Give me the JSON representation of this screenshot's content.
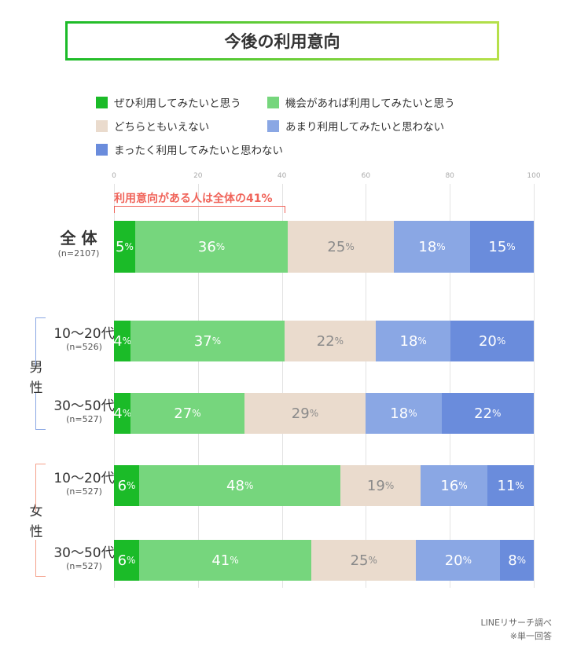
{
  "title": "今後の利用意向",
  "colors": {
    "s0": "#1bbb28",
    "s1": "#76d67d",
    "s2": "#eadbcd",
    "s3": "#8aa7e4",
    "s4": "#6a8cdc",
    "male_bracket": "#8aa7e4",
    "female_bracket": "#f5a18c",
    "annotation": "#f0645a"
  },
  "chart_data": {
    "type": "bar",
    "orientation": "horizontal-stacked-100",
    "xlim": [
      0,
      100
    ],
    "ticks": [
      "0",
      "20",
      "40",
      "60",
      "80",
      "100"
    ],
    "grid": true,
    "legend_placement": "top",
    "series": [
      {
        "name": "ぜひ利用してみたいと思う",
        "values": [
          5,
          4,
          4,
          6,
          6
        ]
      },
      {
        "name": "機会があれば利用してみたいと思う",
        "values": [
          36,
          37,
          27,
          48,
          41
        ]
      },
      {
        "name": "どちらともいえない",
        "values": [
          25,
          22,
          29,
          19,
          25
        ]
      },
      {
        "name": "あまり利用してみたいと思わない",
        "values": [
          18,
          18,
          18,
          16,
          20
        ]
      },
      {
        "name": "まったく利用してみたいと思わない",
        "values": [
          15,
          20,
          22,
          11,
          8
        ]
      }
    ],
    "unit": "%",
    "categories": [
      {
        "label": "全 体",
        "n": "(n=2107)"
      },
      {
        "label": "10〜20代",
        "n": "(n=526)"
      },
      {
        "label": "30〜50代",
        "n": "(n=527)"
      },
      {
        "label": "10〜20代",
        "n": "(n=527)"
      },
      {
        "label": "30〜50代",
        "n": "(n=527)"
      }
    ],
    "groups": [
      {
        "label": "男性"
      },
      {
        "label": "女性"
      }
    ],
    "annotation": "利用意向がある人は全体の41%"
  },
  "source": "LINEリサーチ調べ",
  "note": "※単一回答"
}
